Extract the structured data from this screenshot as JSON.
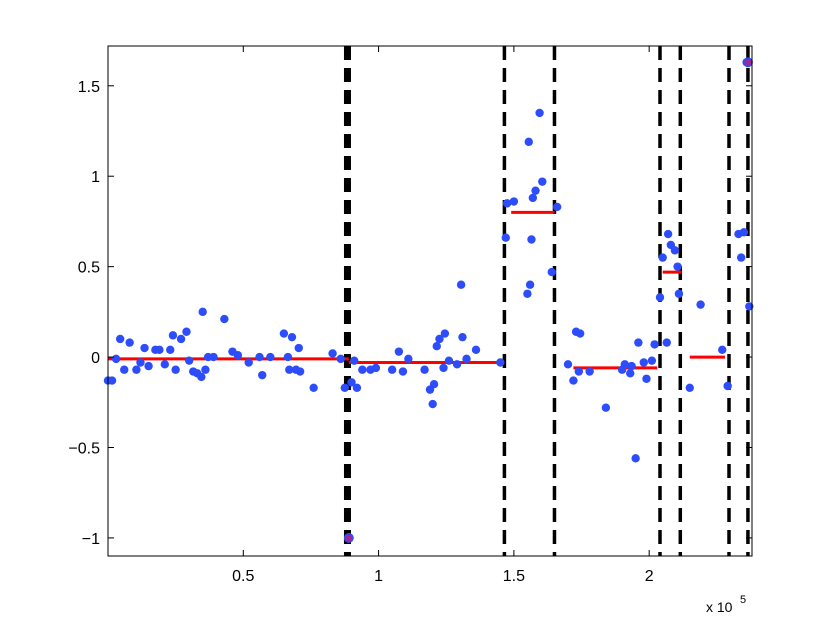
{
  "chart_data": {
    "type": "scatter",
    "title": "",
    "xlabel": "",
    "ylabel": "",
    "x_multiplier_label": "x 10",
    "x_multiplier_exponent": "5",
    "xlim": [
      0,
      238000
    ],
    "ylim": [
      -1.1,
      1.72
    ],
    "x_ticks": [
      50000,
      100000,
      150000,
      200000
    ],
    "x_tick_labels": [
      "0.5",
      "1",
      "1.5",
      "2"
    ],
    "y_ticks": [
      -1,
      -0.5,
      0,
      0.5,
      1,
      1.5
    ],
    "y_tick_labels": [
      "−1",
      "−0.5",
      "0",
      "0.5",
      "1",
      "1.5"
    ],
    "grid": false,
    "legend": "none",
    "colors": {
      "points": "#2d4dfa",
      "segments": "#ff0000",
      "changepoints": "#000000",
      "outlier_fill": "#9a2a9a"
    },
    "points": [
      [
        0,
        -0.13
      ],
      [
        1500,
        -0.13
      ],
      [
        3000,
        -0.01
      ],
      [
        4500,
        0.1
      ],
      [
        6000,
        -0.07
      ],
      [
        8000,
        0.08
      ],
      [
        10500,
        -0.07
      ],
      [
        12000,
        -0.03
      ],
      [
        13500,
        0.05
      ],
      [
        15000,
        -0.05
      ],
      [
        17500,
        0.04
      ],
      [
        19000,
        0.04
      ],
      [
        21000,
        -0.04
      ],
      [
        23000,
        0.04
      ],
      [
        24000,
        0.12
      ],
      [
        25000,
        -0.07
      ],
      [
        27000,
        0.1
      ],
      [
        29000,
        0.14
      ],
      [
        30000,
        -0.02
      ],
      [
        31500,
        -0.08
      ],
      [
        33000,
        -0.09
      ],
      [
        34500,
        -0.11
      ],
      [
        35000,
        0.25
      ],
      [
        36000,
        -0.07
      ],
      [
        37000,
        0.0
      ],
      [
        39000,
        0.0
      ],
      [
        43000,
        0.21
      ],
      [
        46000,
        0.03
      ],
      [
        48000,
        0.01
      ],
      [
        52000,
        -0.03
      ],
      [
        56000,
        0.0
      ],
      [
        57000,
        -0.1
      ],
      [
        60000,
        0.0
      ],
      [
        65000,
        0.13
      ],
      [
        66500,
        0.0
      ],
      [
        67000,
        -0.07
      ],
      [
        68000,
        0.11
      ],
      [
        69500,
        -0.07
      ],
      [
        70500,
        0.05
      ],
      [
        71000,
        -0.08
      ],
      [
        76000,
        -0.17
      ],
      [
        83000,
        0.02
      ],
      [
        86000,
        -0.01
      ],
      [
        87500,
        -0.17
      ],
      [
        89000,
        -1.0
      ],
      [
        90000,
        -0.14
      ],
      [
        91000,
        -0.02
      ],
      [
        92000,
        -0.17
      ],
      [
        94000,
        -0.07
      ],
      [
        97000,
        -0.07
      ],
      [
        99000,
        -0.06
      ],
      [
        105000,
        -0.07
      ],
      [
        107500,
        0.03
      ],
      [
        109000,
        -0.08
      ],
      [
        111000,
        -0.01
      ],
      [
        117000,
        -0.07
      ],
      [
        119000,
        -0.18
      ],
      [
        120000,
        -0.26
      ],
      [
        120500,
        -0.15
      ],
      [
        121500,
        0.06
      ],
      [
        122500,
        0.1
      ],
      [
        124000,
        -0.06
      ],
      [
        124500,
        0.13
      ],
      [
        126000,
        -0.02
      ],
      [
        129000,
        -0.04
      ],
      [
        130500,
        0.4
      ],
      [
        131000,
        0.11
      ],
      [
        132500,
        -0.01
      ],
      [
        136000,
        0.04
      ],
      [
        145000,
        -0.03
      ],
      [
        147000,
        0.66
      ],
      [
        147500,
        0.85
      ],
      [
        150000,
        0.86
      ],
      [
        155000,
        0.35
      ],
      [
        155500,
        1.19
      ],
      [
        156000,
        0.4
      ],
      [
        156500,
        0.65
      ],
      [
        157000,
        0.88
      ],
      [
        158000,
        0.92
      ],
      [
        159500,
        1.35
      ],
      [
        160500,
        0.97
      ],
      [
        164000,
        0.47
      ],
      [
        166000,
        0.83
      ],
      [
        170000,
        -0.04
      ],
      [
        172000,
        -0.13
      ],
      [
        173000,
        0.14
      ],
      [
        174000,
        -0.08
      ],
      [
        174500,
        0.13
      ],
      [
        178000,
        -0.08
      ],
      [
        184000,
        -0.28
      ],
      [
        190000,
        -0.07
      ],
      [
        191000,
        -0.04
      ],
      [
        193000,
        -0.09
      ],
      [
        193500,
        -0.05
      ],
      [
        195000,
        -0.56
      ],
      [
        196000,
        0.08
      ],
      [
        198000,
        -0.03
      ],
      [
        199000,
        -0.12
      ],
      [
        201000,
        -0.02
      ],
      [
        202000,
        0.07
      ],
      [
        204000,
        0.33
      ],
      [
        205000,
        0.55
      ],
      [
        206500,
        0.08
      ],
      [
        207000,
        0.68
      ],
      [
        208000,
        0.62
      ],
      [
        209500,
        0.59
      ],
      [
        210500,
        0.5
      ],
      [
        211000,
        0.35
      ],
      [
        215000,
        -0.17
      ],
      [
        219000,
        0.29
      ],
      [
        227000,
        0.04
      ],
      [
        229000,
        -0.16
      ],
      [
        233000,
        0.68
      ],
      [
        234000,
        0.55
      ],
      [
        235000,
        0.69
      ],
      [
        236000,
        1.63
      ],
      [
        237000,
        0.28
      ]
    ],
    "outlier_points": [
      [
        89000,
        -1.0
      ],
      [
        236500,
        1.63
      ]
    ],
    "segments": [
      {
        "x": [
          0,
          89000
        ],
        "y": -0.01
      },
      {
        "x": [
          89000,
          146000
        ],
        "y": -0.03
      },
      {
        "x": [
          149000,
          165000
        ],
        "y": 0.8
      },
      {
        "x": [
          172000,
          203000
        ],
        "y": -0.06
      },
      {
        "x": [
          205000,
          212000
        ],
        "y": 0.47
      },
      {
        "x": [
          215000,
          228000
        ],
        "y": 0.0
      }
    ],
    "changepoints": [
      {
        "x": 88500,
        "width": "thick"
      },
      {
        "x": 146500,
        "width": "normal"
      },
      {
        "x": 165000,
        "width": "normal"
      },
      {
        "x": 204000,
        "width": "normal"
      },
      {
        "x": 211500,
        "width": "normal"
      },
      {
        "x": 229500,
        "width": "normal"
      },
      {
        "x": 236500,
        "width": "normal"
      }
    ]
  }
}
